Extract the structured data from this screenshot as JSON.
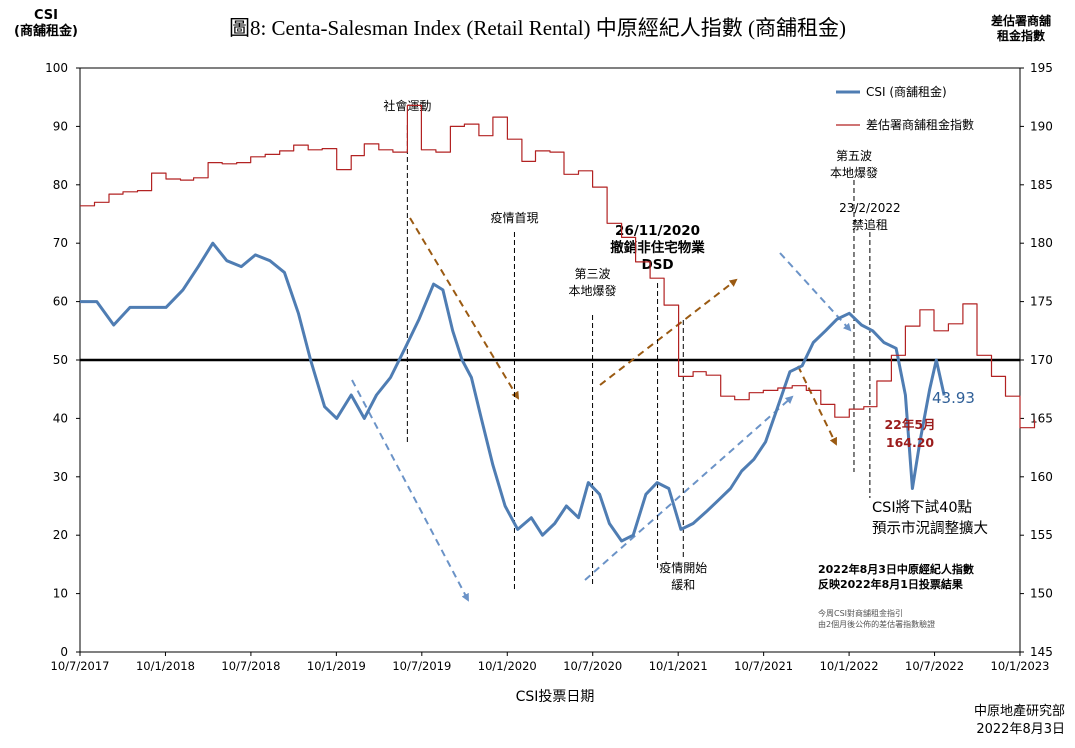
{
  "title": "圖8: Centa-Salesman Index (Retail Rental)   中原經紀人指數 (商舖租金)",
  "left_axis_header": [
    "CSI",
    "(商舖租金)"
  ],
  "right_axis_header": [
    "差估署商舖",
    "租金指數"
  ],
  "footer": {
    "line1": "中原地產研究部",
    "line2": "2022年8月3日"
  },
  "chart_data": {
    "type": "line",
    "xlabel": "CSI投票日期",
    "x_ticks": [
      "10/7/2017",
      "10/1/2018",
      "10/7/2018",
      "10/1/2019",
      "10/7/2019",
      "10/1/2020",
      "10/7/2020",
      "10/1/2021",
      "10/7/2021",
      "10/1/2022",
      "10/7/2022",
      "10/1/2023"
    ],
    "x_range": [
      "2017-07-10",
      "2023-01-10"
    ],
    "y_left": {
      "min": 0,
      "max": 100,
      "step": 10,
      "ticks": [
        "0",
        "10",
        "20",
        "30",
        "40",
        "50",
        "60",
        "70",
        "80",
        "90",
        "100"
      ]
    },
    "y_right": {
      "min": 145,
      "max": 195,
      "step": 5,
      "ticks": [
        "145",
        "150",
        "155",
        "160",
        "165",
        "170",
        "175",
        "180",
        "185",
        "190",
        "195"
      ]
    },
    "reference_line": 50,
    "grid": false,
    "legend_position": "top-right",
    "colors": {
      "csi": "#4f7db3",
      "rvd": "#b22222",
      "ref": "#000000",
      "down_arrow": "#9a5a12",
      "up_arrow": "#6b93c7"
    },
    "series": [
      {
        "name": "CSI (商舖租金)",
        "axis": "left",
        "points": [
          [
            "2017-07-10",
            60
          ],
          [
            "2017-08-15",
            60
          ],
          [
            "2017-09-20",
            56
          ],
          [
            "2017-10-25",
            59
          ],
          [
            "2017-12-01",
            59
          ],
          [
            "2018-01-10",
            59
          ],
          [
            "2018-02-15",
            62
          ],
          [
            "2018-03-20",
            66
          ],
          [
            "2018-04-20",
            70
          ],
          [
            "2018-05-20",
            67
          ],
          [
            "2018-06-20",
            66
          ],
          [
            "2018-07-20",
            68
          ],
          [
            "2018-08-20",
            67
          ],
          [
            "2018-09-20",
            65
          ],
          [
            "2018-10-20",
            58
          ],
          [
            "2018-11-15",
            50
          ],
          [
            "2018-12-15",
            42
          ],
          [
            "2019-01-10",
            40
          ],
          [
            "2019-02-10",
            44
          ],
          [
            "2019-03-10",
            40
          ],
          [
            "2019-04-05",
            44
          ],
          [
            "2019-05-05",
            47
          ],
          [
            "2019-06-05",
            52
          ],
          [
            "2019-07-05",
            57
          ],
          [
            "2019-08-05",
            63
          ],
          [
            "2019-08-25",
            62
          ],
          [
            "2019-09-15",
            55
          ],
          [
            "2019-10-05",
            50
          ],
          [
            "2019-10-25",
            47
          ],
          [
            "2019-11-15",
            40
          ],
          [
            "2019-12-10",
            32
          ],
          [
            "2020-01-05",
            25
          ],
          [
            "2020-02-01",
            21
          ],
          [
            "2020-03-01",
            23
          ],
          [
            "2020-03-25",
            20
          ],
          [
            "2020-04-20",
            22
          ],
          [
            "2020-05-15",
            25
          ],
          [
            "2020-06-10",
            23
          ],
          [
            "2020-07-01",
            29
          ],
          [
            "2020-07-25",
            27
          ],
          [
            "2020-08-15",
            22
          ],
          [
            "2020-09-10",
            19
          ],
          [
            "2020-10-05",
            20
          ],
          [
            "2020-11-01",
            27
          ],
          [
            "2020-11-25",
            29
          ],
          [
            "2020-12-20",
            28
          ],
          [
            "2021-01-15",
            21
          ],
          [
            "2021-02-10",
            22
          ],
          [
            "2021-03-10",
            24
          ],
          [
            "2021-04-05",
            26
          ],
          [
            "2021-05-01",
            28
          ],
          [
            "2021-05-25",
            31
          ],
          [
            "2021-06-20",
            33
          ],
          [
            "2021-07-15",
            36
          ],
          [
            "2021-08-10",
            42
          ],
          [
            "2021-09-05",
            48
          ],
          [
            "2021-10-01",
            49
          ],
          [
            "2021-10-25",
            53
          ],
          [
            "2021-11-20",
            55
          ],
          [
            "2021-12-15",
            57
          ],
          [
            "2022-01-10",
            58
          ],
          [
            "2022-02-05",
            56
          ],
          [
            "2022-03-01",
            55
          ],
          [
            "2022-03-25",
            53
          ],
          [
            "2022-04-20",
            52
          ],
          [
            "2022-05-10",
            44
          ],
          [
            "2022-05-25",
            28
          ],
          [
            "2022-06-10",
            36
          ],
          [
            "2022-07-01",
            45
          ],
          [
            "2022-07-15",
            50
          ],
          [
            "2022-08-01",
            43.93
          ]
        ]
      },
      {
        "name": "差估署商舖租金指數",
        "axis": "right",
        "points": [
          [
            "2017-07-10",
            183.2
          ],
          [
            "2017-08-10",
            183.5
          ],
          [
            "2017-09-10",
            184.2
          ],
          [
            "2017-10-10",
            184.4
          ],
          [
            "2017-11-10",
            184.5
          ],
          [
            "2017-12-10",
            186.0
          ],
          [
            "2018-01-10",
            185.5
          ],
          [
            "2018-02-10",
            185.4
          ],
          [
            "2018-03-10",
            185.6
          ],
          [
            "2018-04-10",
            186.9
          ],
          [
            "2018-05-10",
            186.8
          ],
          [
            "2018-06-10",
            186.9
          ],
          [
            "2018-07-10",
            187.4
          ],
          [
            "2018-08-10",
            187.6
          ],
          [
            "2018-09-10",
            187.9
          ],
          [
            "2018-10-10",
            188.4
          ],
          [
            "2018-11-10",
            188.0
          ],
          [
            "2018-12-10",
            188.1
          ],
          [
            "2019-01-10",
            186.3
          ],
          [
            "2019-02-10",
            187.5
          ],
          [
            "2019-03-10",
            188.5
          ],
          [
            "2019-04-10",
            188.0
          ],
          [
            "2019-05-10",
            187.8
          ],
          [
            "2019-06-10",
            191.8
          ],
          [
            "2019-07-10",
            188.0
          ],
          [
            "2019-08-10",
            187.8
          ],
          [
            "2019-09-10",
            190.0
          ],
          [
            "2019-10-10",
            190.2
          ],
          [
            "2019-11-10",
            189.2
          ],
          [
            "2019-12-10",
            190.8
          ],
          [
            "2020-01-10",
            188.9
          ],
          [
            "2020-02-10",
            187.0
          ],
          [
            "2020-03-10",
            187.9
          ],
          [
            "2020-04-10",
            187.8
          ],
          [
            "2020-05-10",
            185.9
          ],
          [
            "2020-06-10",
            186.2
          ],
          [
            "2020-07-10",
            184.8
          ],
          [
            "2020-08-10",
            181.7
          ],
          [
            "2020-09-10",
            180.5
          ],
          [
            "2020-10-10",
            178.4
          ],
          [
            "2020-11-10",
            177.0
          ],
          [
            "2020-12-10",
            174.7
          ],
          [
            "2021-01-10",
            168.6
          ],
          [
            "2021-02-10",
            169.0
          ],
          [
            "2021-03-10",
            168.7
          ],
          [
            "2021-04-10",
            166.9
          ],
          [
            "2021-05-10",
            166.6
          ],
          [
            "2021-06-10",
            167.2
          ],
          [
            "2021-07-10",
            167.4
          ],
          [
            "2021-08-10",
            167.6
          ],
          [
            "2021-09-10",
            167.8
          ],
          [
            "2021-10-10",
            167.4
          ],
          [
            "2021-11-10",
            166.2
          ],
          [
            "2021-12-10",
            165.1
          ],
          [
            "2022-01-10",
            165.8
          ],
          [
            "2022-02-10",
            166.0
          ],
          [
            "2022-03-10",
            168.2
          ],
          [
            "2022-04-10",
            170.4
          ],
          [
            "2022-05-10",
            172.9
          ],
          [
            "2022-06-10",
            174.3
          ],
          [
            "2022-07-10",
            172.5
          ],
          [
            "2022-08-10",
            173.1
          ],
          [
            "2022-09-10",
            174.8
          ],
          [
            "2022-10-10",
            170.4
          ],
          [
            "2022-11-10",
            168.6
          ],
          [
            "2022-12-10",
            166.9
          ],
          [
            "2023-01-10",
            164.2
          ],
          [
            "2023-02-10",
            164.9
          ]
        ]
      }
    ],
    "value_labels": {
      "csi_latest": "43.93",
      "rvd_month": "22年5月",
      "rvd_latest": "164.20"
    },
    "events": [
      {
        "date": "2019-06-10",
        "label": [
          "社會運動"
        ]
      },
      {
        "date": "2020-01-25",
        "label": [
          "疫情首現"
        ]
      },
      {
        "date": "2020-07-10",
        "label": [
          "第三波",
          "本地爆發"
        ]
      },
      {
        "date": "2020-11-26",
        "label": [
          "26/11/2020",
          "撤銷非住宅物業",
          "DSD"
        ],
        "bold": true
      },
      {
        "date": "2021-01-20",
        "label": [
          "疫情開始",
          "緩和"
        ]
      },
      {
        "date": "2022-01-20",
        "label": [
          "第五波",
          "本地爆發"
        ]
      },
      {
        "date": "2022-02-23",
        "label": [
          "23/2/2022",
          "禁追租"
        ]
      }
    ],
    "annotations": [
      {
        "text": [
          "CSI將下試40點",
          "預示市況調整擴大"
        ]
      },
      {
        "text": [
          "2022年8月3日中原經紀人指數",
          "反映2022年8月1日投票結果"
        ],
        "bold": true
      },
      {
        "text": [
          "今周CSI對商舖租金指引",
          "由2個月後公佈的差估署指數驗證"
        ],
        "small": true
      }
    ]
  }
}
